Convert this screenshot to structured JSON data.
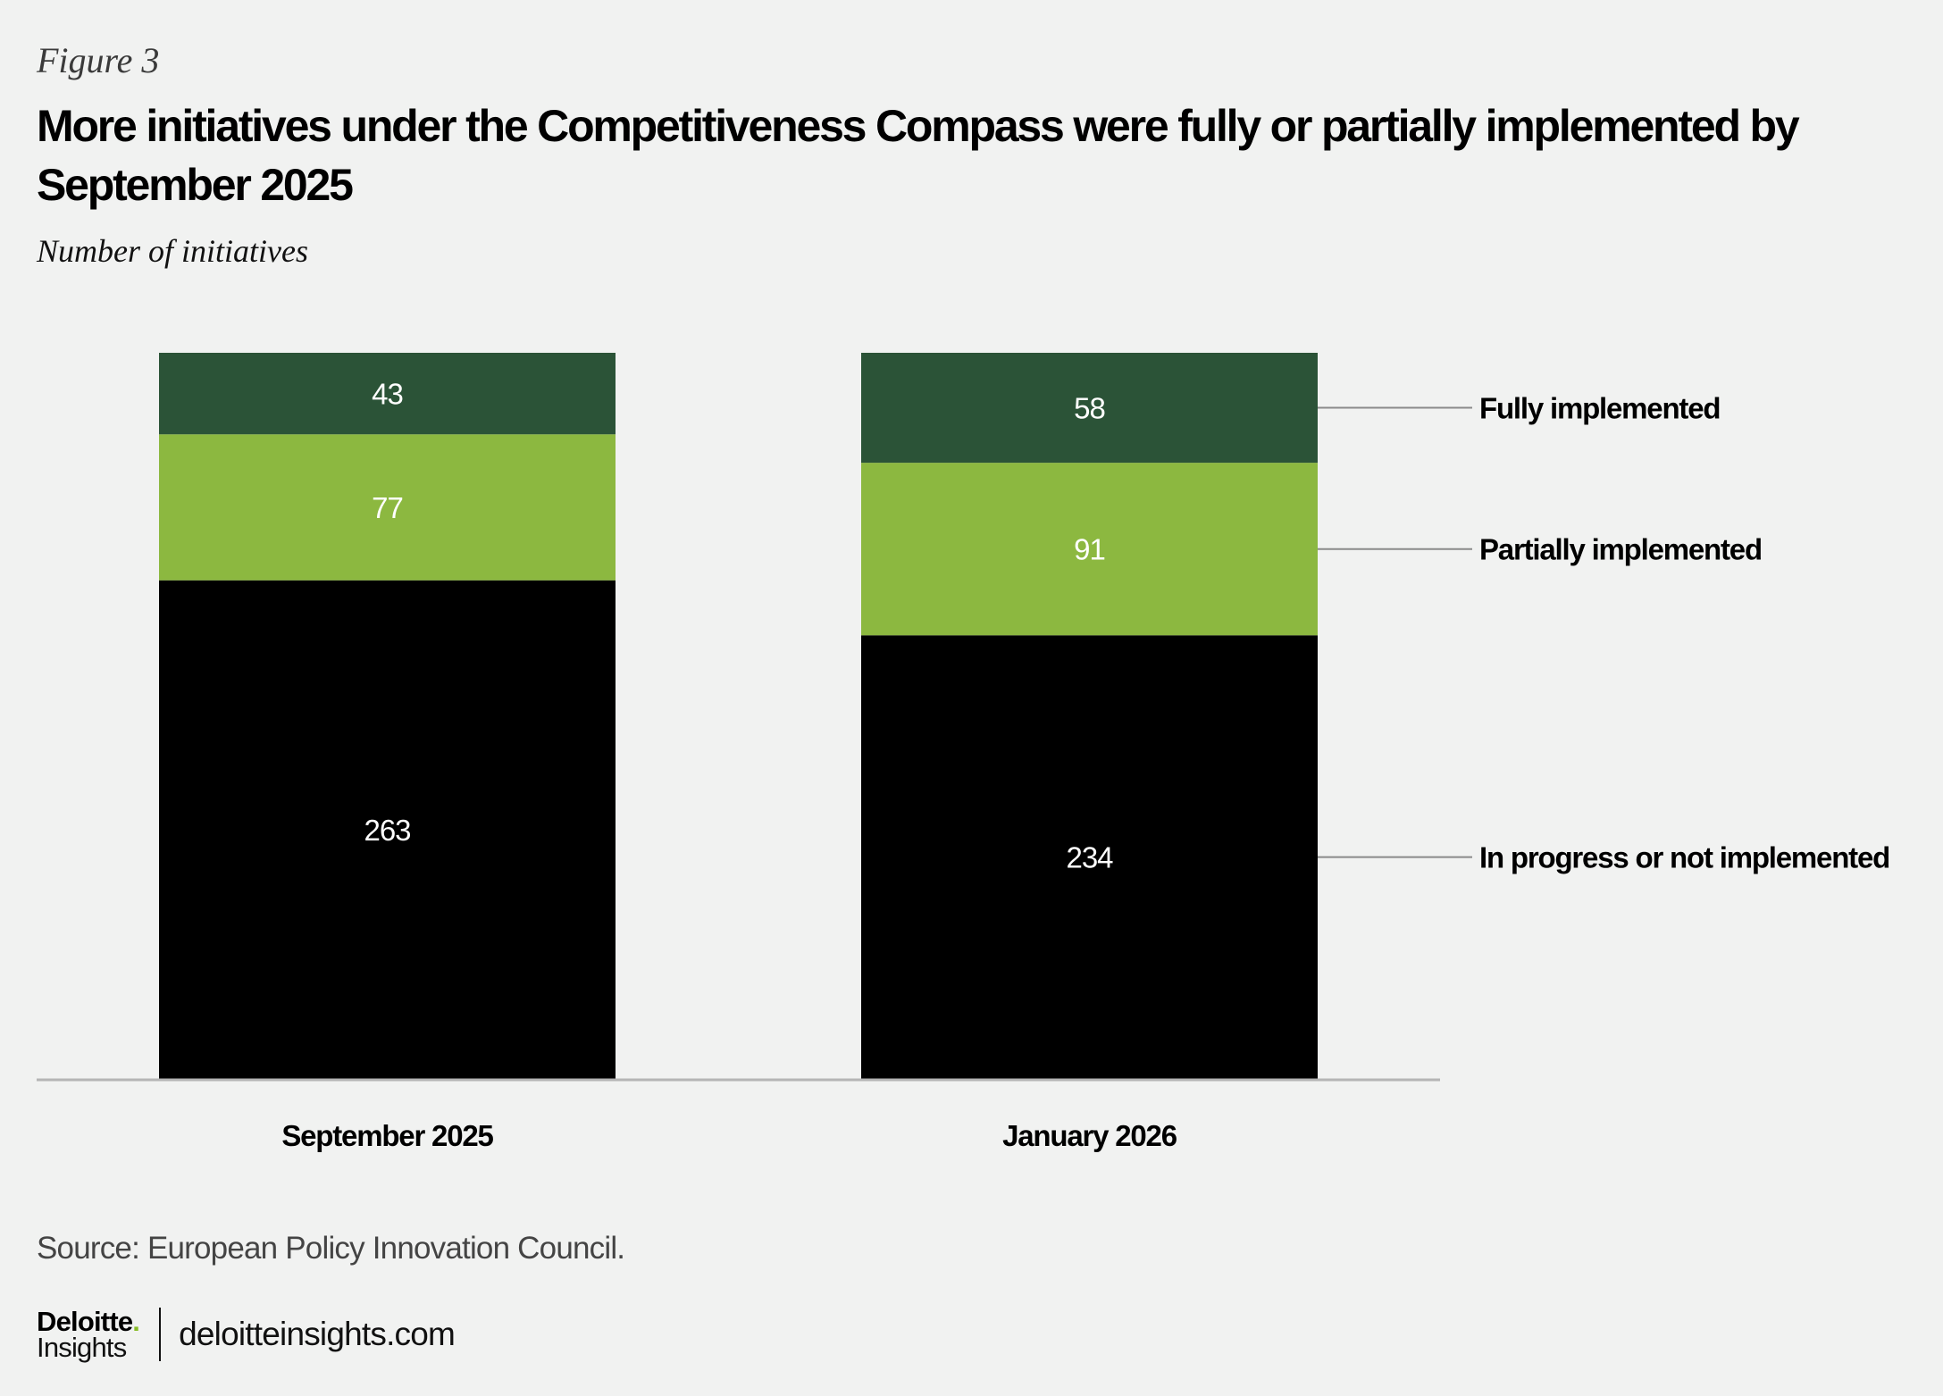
{
  "figure_label": "Figure 3",
  "title": "More initiatives under the Competitiveness Compass were fully or partially implemented by September 2025",
  "subtitle": "Number of initiatives",
  "source": "Source: European Policy Innovation Council.",
  "footer": {
    "logo_top": "Deloitte",
    "logo_dot": ".",
    "logo_bottom": "Insights",
    "site": "deloitteinsights.com"
  },
  "chart_data": {
    "type": "bar",
    "stacked": true,
    "title": "More initiatives under the Competitiveness Compass were fully or partially implemented by September 2025",
    "subtitle": "Number of initiatives",
    "xlabel": "",
    "ylabel": "Number of initiatives",
    "categories": [
      "September 2025",
      "January 2026"
    ],
    "series": [
      {
        "name": "In progress or not implemented",
        "values": [
          263,
          234
        ],
        "color": "#000000"
      },
      {
        "name": "Partially implemented",
        "values": [
          77,
          91
        ],
        "color": "#8cb840"
      },
      {
        "name": "Fully implemented",
        "values": [
          43,
          58
        ],
        "color": "#2b5337"
      }
    ],
    "ylim": [
      0,
      383
    ],
    "grid": false,
    "legend": "right (direct labels)",
    "data_labels": true
  }
}
